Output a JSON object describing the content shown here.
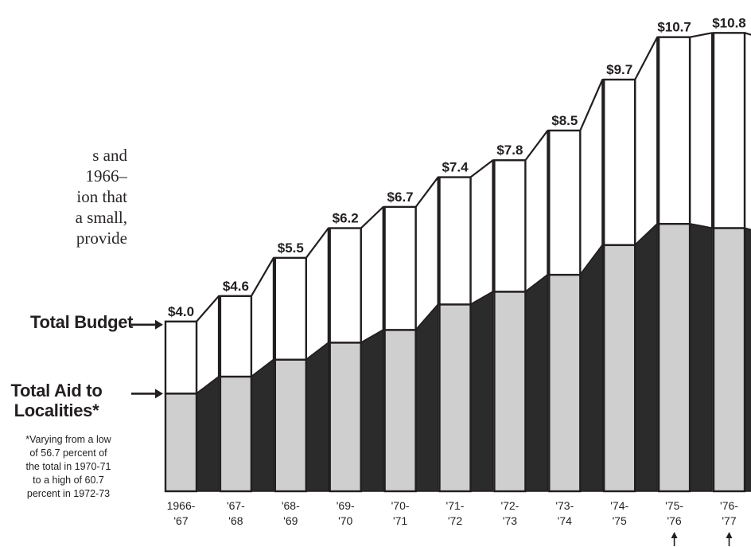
{
  "body_text_lines": [
    "s and",
    "1966–",
    "ion that",
    "a small,",
    "provide"
  ],
  "labels": {
    "total_budget": "Total Budget",
    "total_aid_line1": "Total Aid to",
    "total_aid_line2": "Localities*"
  },
  "footnote_lines": [
    "*Varying from a low",
    "of 56.7 percent of",
    "the total in 1970-71",
    "to a high of 60.7",
    "percent in 1972-73"
  ],
  "colors": {
    "total_fill": "#ffffff",
    "aid_fill": "#cfcfcf",
    "side_dark": "#2b2b2b",
    "ink": "#231f20"
  },
  "chart_data": {
    "type": "bar",
    "categories": [
      "1966-'67",
      "'67-'68",
      "'68-'69",
      "'69-'70",
      "'70-'71",
      "'71-'72",
      "'72-'73",
      "'73-'74",
      "'74-'75",
      "'75-'76",
      "'76-'77"
    ],
    "category_lines": [
      [
        "1966-",
        "'67"
      ],
      [
        "'67-",
        "'68"
      ],
      [
        "'68-",
        "'69"
      ],
      [
        "'69-",
        "'70"
      ],
      [
        "'70-",
        "'71"
      ],
      [
        "'71-",
        "'72"
      ],
      [
        "'72-",
        "'73"
      ],
      [
        "'73-",
        "'74"
      ],
      [
        "'74-",
        "'75"
      ],
      [
        "'75-",
        "'76"
      ],
      [
        "'76-",
        "'77"
      ]
    ],
    "value_labels": [
      "$4.0",
      "$4.6",
      "$5.5",
      "$6.2",
      "$6.7",
      "$7.4",
      "$7.8",
      "$8.5",
      "$9.7",
      "$10.7",
      "$10.8"
    ],
    "series": [
      {
        "name": "Total Budget",
        "values": [
          4.0,
          4.6,
          5.5,
          6.2,
          6.7,
          7.4,
          7.8,
          8.5,
          9.7,
          10.7,
          10.8
        ]
      },
      {
        "name": "Total Aid to Localities",
        "values": [
          2.3,
          2.7,
          3.1,
          3.5,
          3.8,
          4.4,
          4.7,
          5.1,
          5.8,
          6.3,
          6.2
        ]
      }
    ],
    "arrow_marked_categories": [
      "'75-'76",
      "'76-'77"
    ],
    "ylim": [
      0,
      10.9
    ],
    "grid": false
  }
}
